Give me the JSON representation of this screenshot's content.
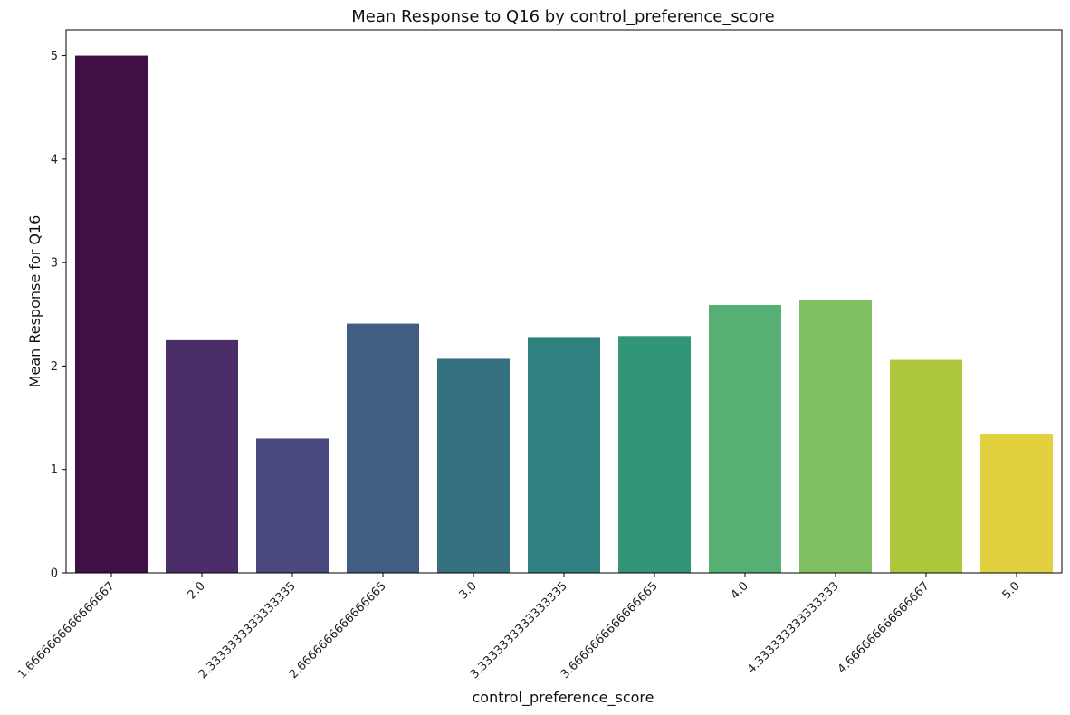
{
  "chart_data": {
    "type": "bar",
    "title": "Mean Response to Q16 by control_preference_score",
    "xlabel": "control_preference_score",
    "ylabel": "Mean Response for Q16",
    "categories": [
      "1.6666666666666667",
      "2.0",
      "2.3333333333333335",
      "2.6666666666666665",
      "3.0",
      "3.3333333333333335",
      "3.6666666666666665",
      "4.0",
      "4.333333333333333",
      "4.666666666666667",
      "5.0"
    ],
    "values": [
      5.0,
      2.25,
      1.3,
      2.41,
      2.07,
      2.28,
      2.29,
      2.59,
      2.64,
      2.06,
      1.34
    ],
    "ylim": [
      0,
      5.25
    ],
    "yticks": [
      "0",
      "1",
      "2",
      "3",
      "4",
      "5"
    ],
    "grid": false,
    "colors": [
      "#440154",
      "#482878",
      "#3e4a89",
      "#31688e",
      "#26828e",
      "#1f9e89",
      "#35b779",
      "#6ece58",
      "#b5de2b",
      "#fde725",
      "#fde725"
    ],
    "bar_colors": [
      "#3f0f45",
      "#4b2d69",
      "#4b4a7e",
      "#415e82",
      "#36717f",
      "#2f8180",
      "#339578",
      "#56b074",
      "#81c060",
      "#acc73c",
      "#e2d03f"
    ]
  }
}
